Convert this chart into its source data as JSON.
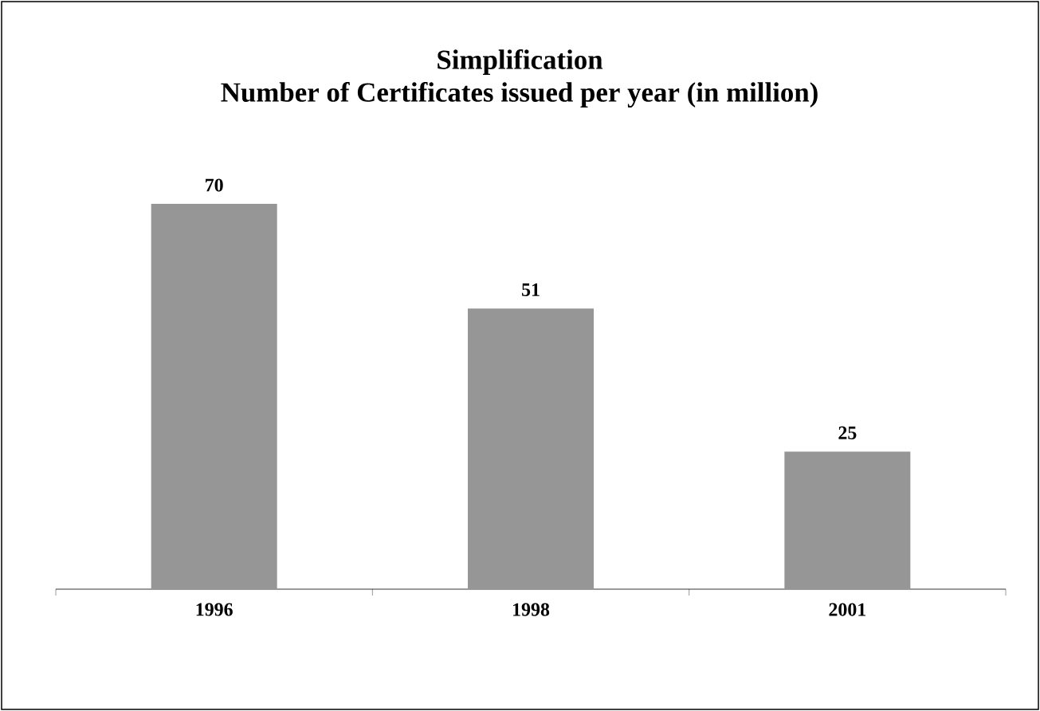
{
  "chart_data": {
    "type": "bar",
    "title": "Simplification",
    "subtitle": "Number of Certificates issued per year (in million)",
    "categories": [
      "1996",
      "1998",
      "2001"
    ],
    "values": [
      70,
      51,
      25
    ],
    "color": "#969696",
    "data_labels": true
  }
}
